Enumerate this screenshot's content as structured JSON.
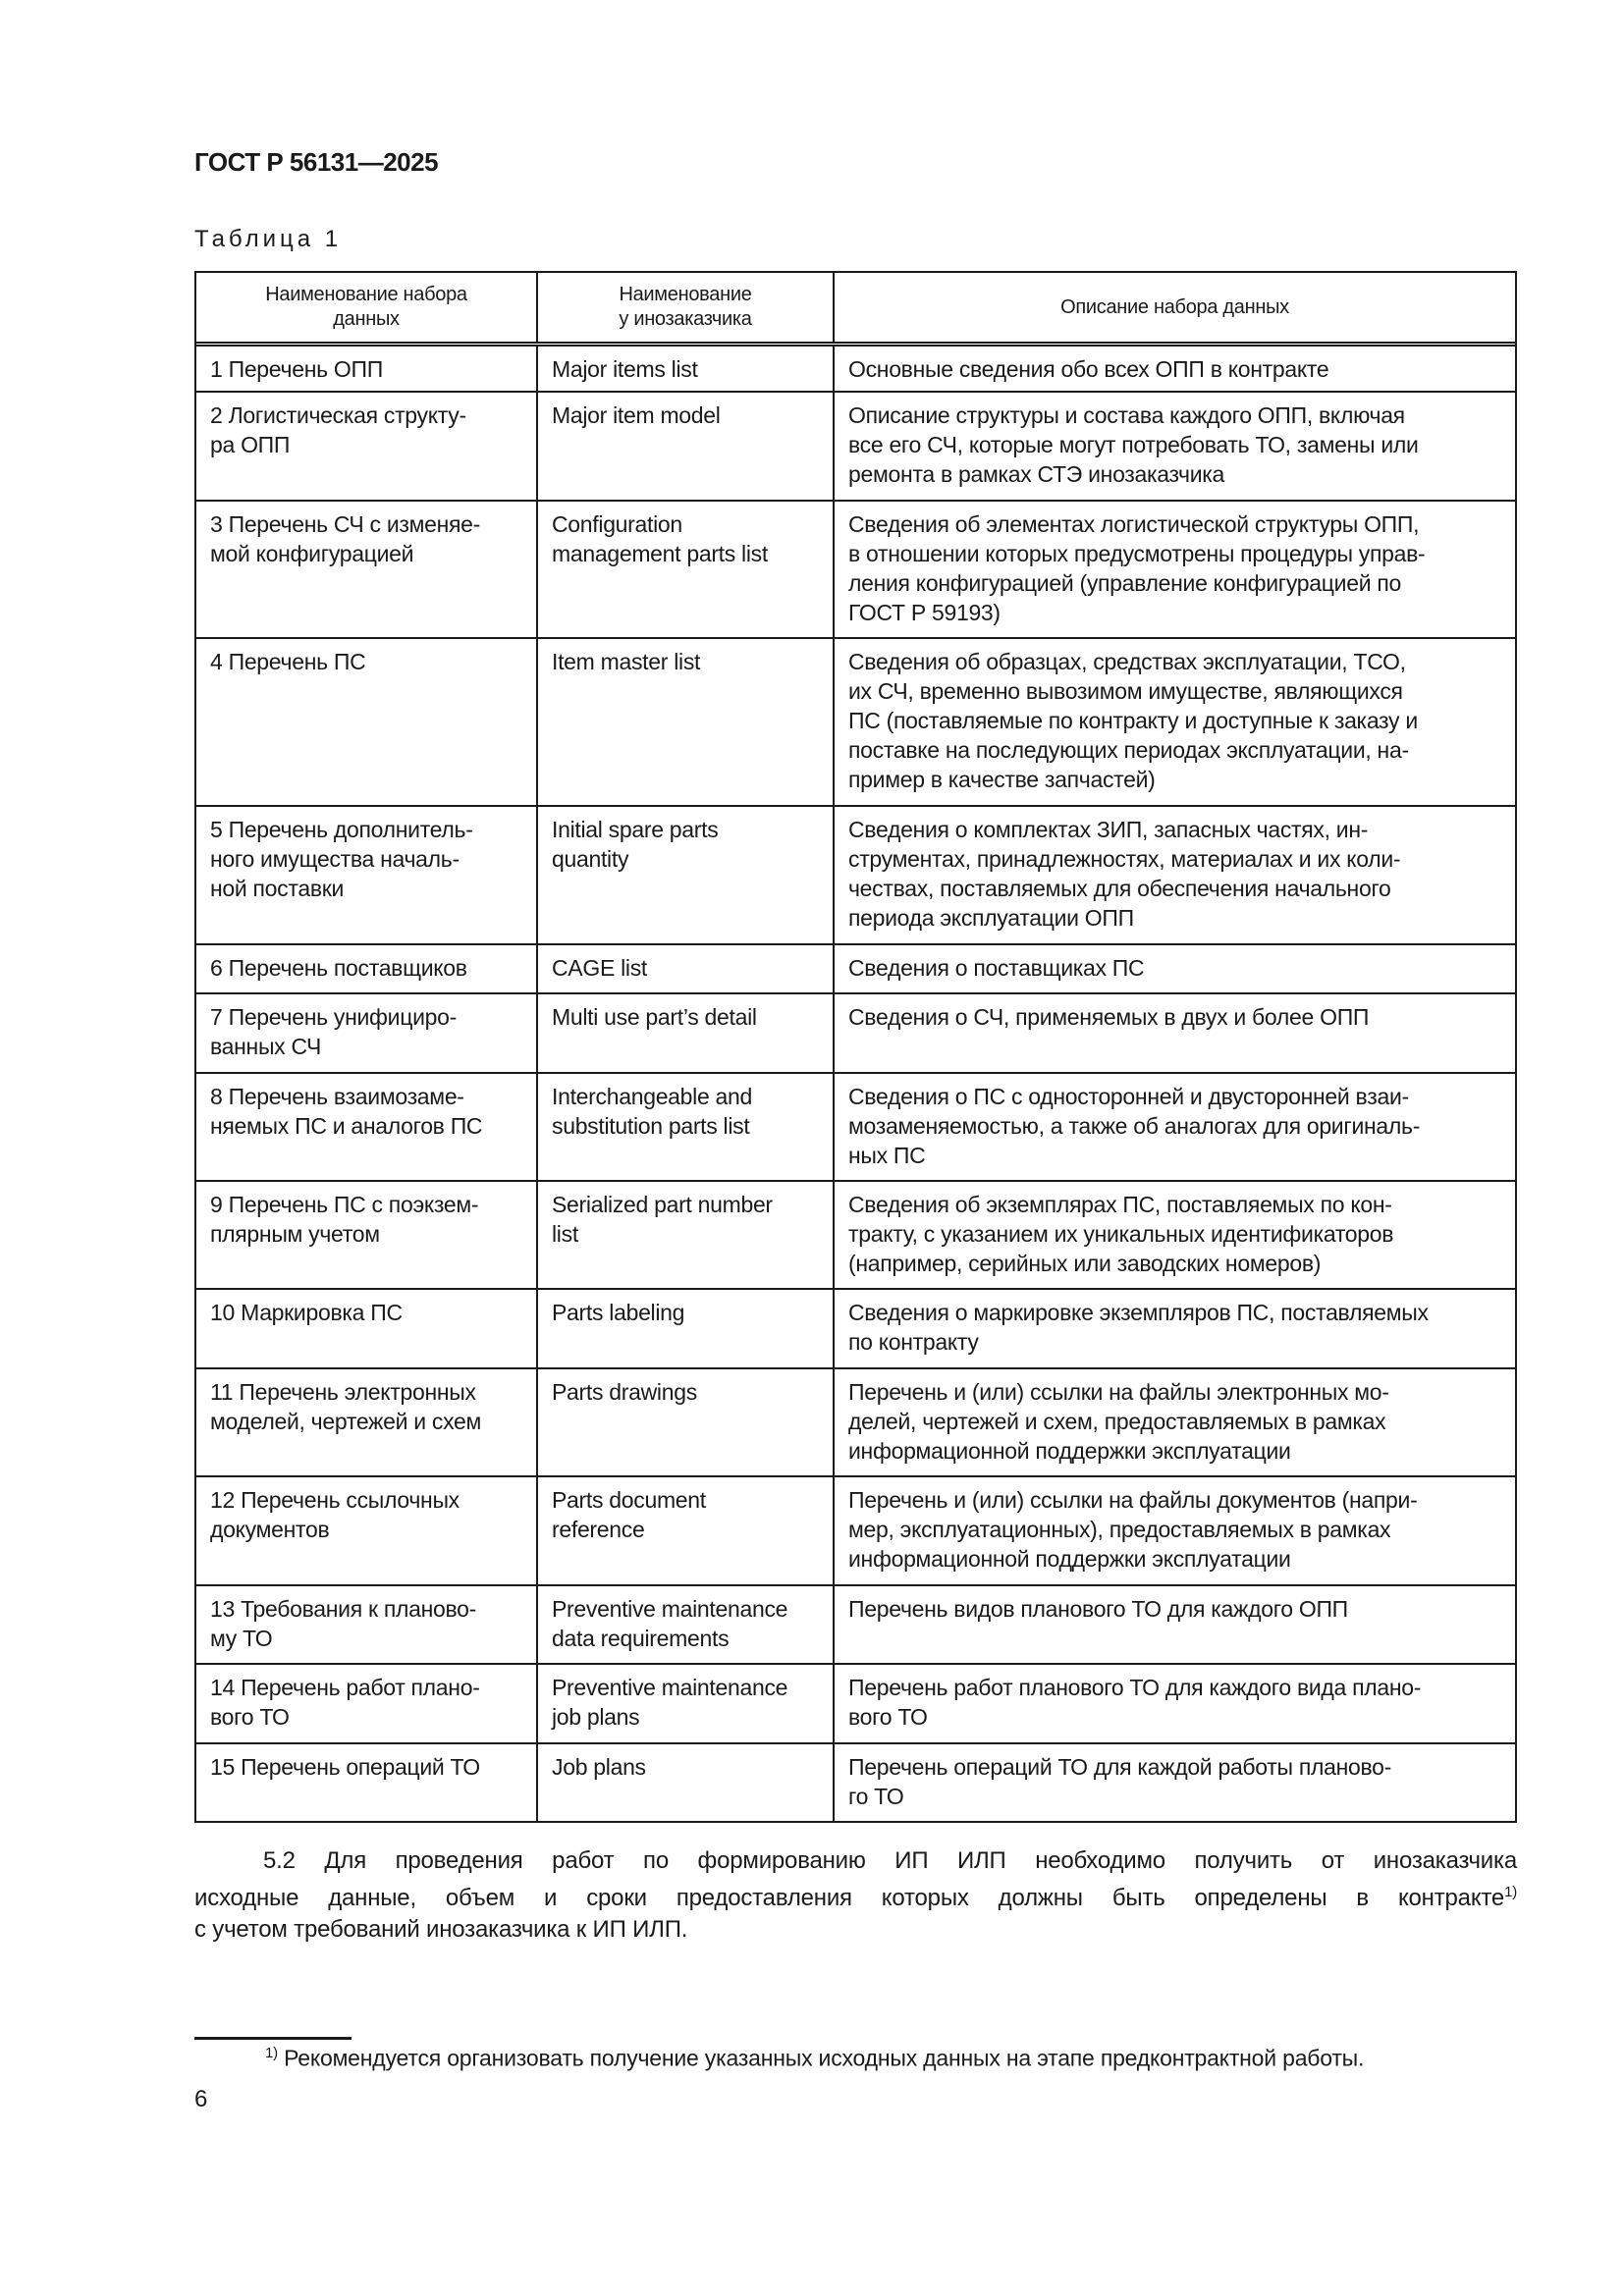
{
  "header": {
    "doc_title": "ГОСТ Р 56131—2025"
  },
  "table": {
    "label": "Таблица 1",
    "columns": [
      [
        "Наименование набора",
        "данных"
      ],
      [
        "Наименование",
        "у инозаказчика"
      ],
      [
        "Описание набора данных"
      ]
    ],
    "rows": [
      {
        "h": 50,
        "c1": [
          "1  Перечень ОПП"
        ],
        "c2": [
          "Major items list"
        ],
        "c3": [
          "Основные сведения обо всех ОПП в контракте"
        ]
      },
      {
        "h": 111,
        "c1": [
          "2  Логистическая структу-",
          "ра ОПП"
        ],
        "c2": [
          "Major item model"
        ],
        "c3": [
          "Описание структуры и состава каждого ОПП, включая",
          "все его СЧ, которые могут потребовать ТО, замены или",
          "ремонта в рамках СТЭ инозаказчика"
        ]
      },
      {
        "h": 140,
        "c1": [
          "3  Перечень СЧ с изменяе-",
          "мой конфигурацией"
        ],
        "c2": [
          "Configuration",
          "management parts list"
        ],
        "c3": [
          "Сведения об элементах логистической структуры ОПП,",
          "в отношении которых предусмотрены процедуры управ-",
          "ления конфигурацией (управление конфигурацией по",
          "ГОСТ Р 59193)"
        ]
      },
      {
        "h": 171,
        "c1": [
          "4  Перечень ПС"
        ],
        "c2": [
          "Item master list"
        ],
        "c3": [
          "Сведения об образцах, средствах эксплуатации, ТСО,",
          "их СЧ, временно вывозимом имуществе, являющихся",
          "ПС (поставляемые по контракту и доступные к заказу и",
          "поставке на последующих периодах эксплуатации, на-",
          "пример в качестве запчастей)"
        ]
      },
      {
        "h": 141,
        "c1": [
          "5  Перечень дополнитель-",
          "ного имущества началь-",
          "ной поставки"
        ],
        "c2": [
          "Initial spare parts",
          "quantity"
        ],
        "c3": [
          "Сведения о комплектах ЗИП, запасных частях, ин-",
          "струментах, принадлежностях, материалах и их коли-",
          "чествах, поставляемых для обеспечения начального",
          "периода эксплуатации ОПП"
        ]
      },
      {
        "h": 50,
        "c1": [
          "6  Перечень поставщиков"
        ],
        "c2": [
          "CAGE list"
        ],
        "c3": [
          "Сведения о поставщиках ПС"
        ]
      },
      {
        "h": 81,
        "c1": [
          "7  Перечень унифициро-",
          "ванных СЧ"
        ],
        "c2": [
          "Multi use part’s detail"
        ],
        "c3": [
          "Сведения о СЧ, применяемых в двух и более ОПП"
        ]
      },
      {
        "h": 110,
        "c1": [
          "8  Перечень взаимозаме-",
          "няемых ПС и аналогов ПС"
        ],
        "c2": [
          "Interchangeable and",
          "substitution parts list"
        ],
        "c3": [
          "Сведения о ПС с односторонней и двусторонней взаи-",
          "мозаменяемостью, а также об аналогах для оригиналь-",
          "ных ПС"
        ]
      },
      {
        "h": 110,
        "c1": [
          "9  Перечень ПС с поэкзем-",
          "плярным учетом"
        ],
        "c2": [
          "Serialized part number",
          "list"
        ],
        "c3": [
          "Сведения об экземплярах ПС, поставляемых по кон-",
          "тракту, с указанием их уникальных идентификаторов",
          "(например, серийных или заводских номеров)"
        ]
      },
      {
        "h": 81,
        "c1": [
          "10  Маркировка ПС"
        ],
        "c2": [
          "Parts labeling"
        ],
        "c3": [
          "Сведения о маркировке экземпляров ПС, поставляемых",
          "по контракту"
        ]
      },
      {
        "h": 110,
        "c1": [
          "11  Перечень электронных",
          "моделей, чертежей и схем"
        ],
        "c2": [
          "Parts drawings"
        ],
        "c3": [
          "Перечень и (или) ссылки на файлы электронных мо-",
          "делей, чертежей и схем, предоставляемых в рамках",
          "информационной поддержки эксплуатации"
        ]
      },
      {
        "h": 111,
        "c1": [
          "12  Перечень ссылочных",
          "документов"
        ],
        "c2": [
          "Parts document",
          "reference"
        ],
        "c3": [
          "Перечень и (или) ссылки на файлы документов (напри-",
          "мер, эксплуатационных), предоставляемых в рамках",
          "информационной поддержки эксплуатации"
        ]
      },
      {
        "h": 80,
        "c1": [
          "13  Требования к планово-",
          "му ТО"
        ],
        "c2": [
          "Preventive maintenance",
          "data requirements"
        ],
        "c3": [
          "Перечень видов планового ТО для каждого ОПП"
        ]
      },
      {
        "h": 81,
        "c1": [
          "14 Перечень работ плано-",
          "вого ТО"
        ],
        "c2": [
          "Preventive maintenance",
          "job plans"
        ],
        "c3": [
          "Перечень работ планового ТО для каждого вида плано-",
          "вого ТО"
        ]
      },
      {
        "h": 80,
        "c1": [
          "15 Перечень операций ТО"
        ],
        "c2": [
          "Job plans"
        ],
        "c3": [
          "Перечень операций ТО для каждой работы планово-",
          "го ТО"
        ]
      }
    ]
  },
  "paragraph": {
    "lines": [
      "5.2 Для проведения работ по формированию ИП ИЛП необходимо получить от инозаказчика",
      "исходные данные, объем и сроки предоставления которых должны быть определены в контракте",
      "с учетом требований инозаказчика к ИП ИЛП."
    ],
    "footnote_ref": "1)"
  },
  "footnote": {
    "mark": "1)",
    "text": "Рекомендуется организовать получение указанных исходных данных на этапе предконтрактной работы."
  },
  "page_number": "6"
}
